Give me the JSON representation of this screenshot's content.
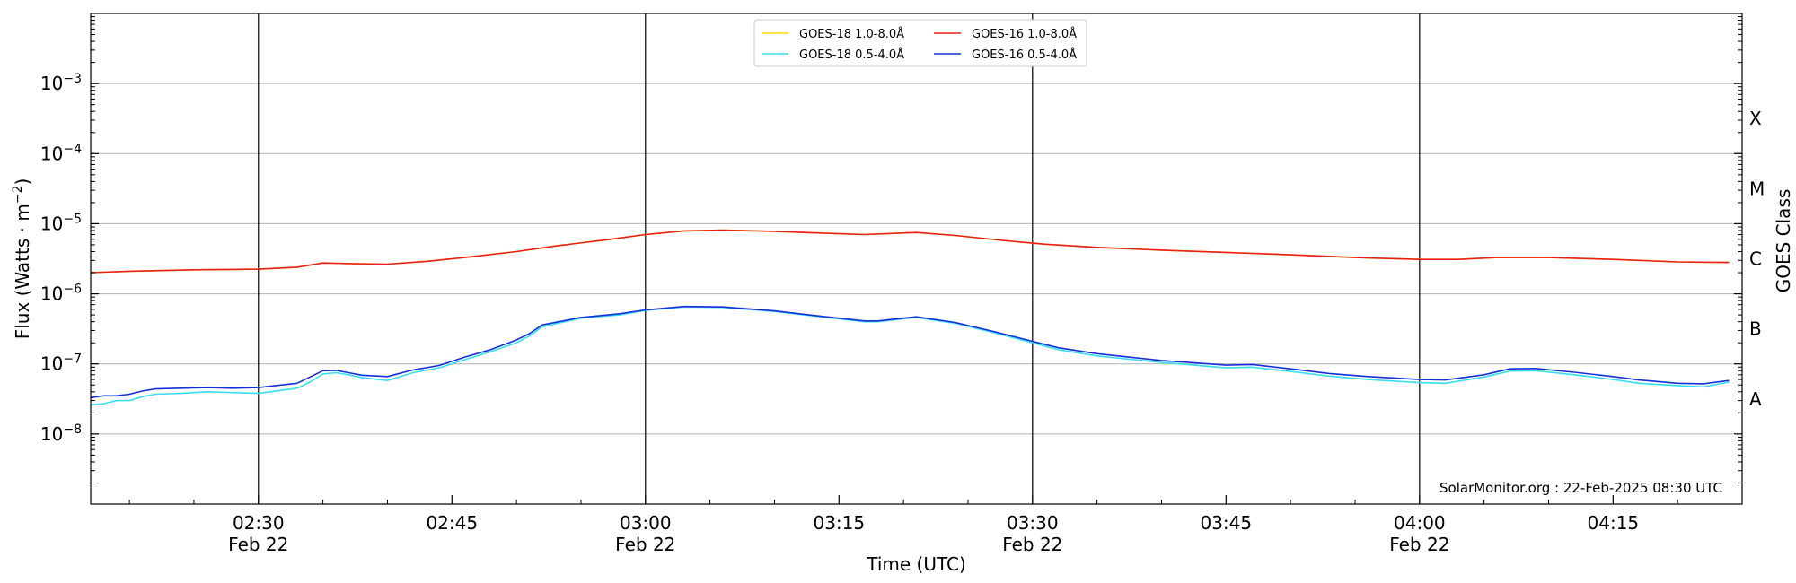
{
  "chart_data": {
    "type": "line",
    "xlabel": "Time (UTC)",
    "ylabel": "Flux (Watts · m",
    "ylabel_sup": "−2",
    "ylabel_close": ")",
    "right_label": "GOES Class",
    "y_scale": "log",
    "ylim": [
      1e-09,
      0.01
    ],
    "xlim": [
      "02:17",
      "04:25"
    ],
    "grid": "horizontal at each decade",
    "legend_position": "top-center",
    "watermark": "SolarMonitor.org : 22-Feb-2025 08:30 UTC",
    "x_ticks": [
      {
        "t": "02:30",
        "label": "02:30",
        "sub": "Feb 22",
        "vline": true
      },
      {
        "t": "02:45",
        "label": "02:45",
        "sub": "",
        "vline": false
      },
      {
        "t": "03:00",
        "label": "03:00",
        "sub": "Feb 22",
        "vline": true
      },
      {
        "t": "03:15",
        "label": "03:15",
        "sub": "",
        "vline": false
      },
      {
        "t": "03:30",
        "label": "03:30",
        "sub": "Feb 22",
        "vline": true
      },
      {
        "t": "03:45",
        "label": "03:45",
        "sub": "",
        "vline": false
      },
      {
        "t": "04:00",
        "label": "04:00",
        "sub": "Feb 22",
        "vline": true
      },
      {
        "t": "04:15",
        "label": "04:15",
        "sub": "",
        "vline": false
      }
    ],
    "y_ticks": [
      {
        "value": 1e-08,
        "base": "10",
        "exp": "−8"
      },
      {
        "value": 1e-07,
        "base": "10",
        "exp": "−7"
      },
      {
        "value": 1e-06,
        "base": "10",
        "exp": "−6"
      },
      {
        "value": 1e-05,
        "base": "10",
        "exp": "−5"
      },
      {
        "value": 0.0001,
        "base": "10",
        "exp": "−4"
      },
      {
        "value": 0.001,
        "base": "10",
        "exp": "−3"
      }
    ],
    "goes_classes": [
      {
        "label": "A",
        "value": 3.16e-08
      },
      {
        "label": "B",
        "value": 3.16e-07
      },
      {
        "label": "C",
        "value": 3.16e-06
      },
      {
        "label": "M",
        "value": 3.16e-05
      },
      {
        "label": "X",
        "value": 0.000316
      }
    ],
    "series": [
      {
        "name": "GOES-18 1.0-8.0Å",
        "color": "#FFD700",
        "x": [
          "02:17",
          "02:20",
          "02:25",
          "02:30",
          "02:33",
          "02:35",
          "02:37",
          "02:40",
          "02:43",
          "02:46",
          "02:50",
          "02:53",
          "02:57",
          "03:00",
          "03:03",
          "03:06",
          "03:10",
          "03:13",
          "03:17",
          "03:21",
          "03:24",
          "03:28",
          "03:31",
          "03:35",
          "03:40",
          "03:45",
          "03:50",
          "03:55",
          "04:00",
          "04:03",
          "04:06",
          "04:10",
          "04:15",
          "04:20",
          "04:24"
        ],
        "values": [
          2e-06,
          2.1e-06,
          2.2e-06,
          2.25e-06,
          2.4e-06,
          2.75e-06,
          2.7e-06,
          2.65e-06,
          2.9e-06,
          3.3e-06,
          4e-06,
          4.8e-06,
          5.9e-06,
          7e-06,
          7.9e-06,
          8.1e-06,
          7.8e-06,
          7.4e-06,
          7e-06,
          7.5e-06,
          6.8e-06,
          5.7e-06,
          5.1e-06,
          4.6e-06,
          4.2e-06,
          3.9e-06,
          3.6e-06,
          3.3e-06,
          3.1e-06,
          3.1e-06,
          3.3e-06,
          3.3e-06,
          3.1e-06,
          2.85e-06,
          2.8e-06
        ]
      },
      {
        "name": "GOES-16 1.0-8.0Å",
        "color": "#E8201A",
        "x": [
          "02:17",
          "02:20",
          "02:25",
          "02:30",
          "02:33",
          "02:35",
          "02:37",
          "02:40",
          "02:43",
          "02:46",
          "02:50",
          "02:53",
          "02:57",
          "03:00",
          "03:03",
          "03:06",
          "03:10",
          "03:13",
          "03:17",
          "03:21",
          "03:24",
          "03:28",
          "03:31",
          "03:35",
          "03:40",
          "03:45",
          "03:50",
          "03:55",
          "04:00",
          "04:03",
          "04:06",
          "04:10",
          "04:15",
          "04:20",
          "04:24"
        ],
        "values": [
          2e-06,
          2.1e-06,
          2.2e-06,
          2.25e-06,
          2.4e-06,
          2.75e-06,
          2.7e-06,
          2.65e-06,
          2.9e-06,
          3.3e-06,
          4e-06,
          4.8e-06,
          5.9e-06,
          7e-06,
          7.9e-06,
          8.1e-06,
          7.8e-06,
          7.4e-06,
          7e-06,
          7.5e-06,
          6.8e-06,
          5.7e-06,
          5.1e-06,
          4.6e-06,
          4.2e-06,
          3.9e-06,
          3.6e-06,
          3.3e-06,
          3.1e-06,
          3.1e-06,
          3.3e-06,
          3.3e-06,
          3.1e-06,
          2.85e-06,
          2.8e-06
        ]
      },
      {
        "name": "GOES-18 0.5-4.0Å",
        "color": "#3ADDEF",
        "x": [
          "02:17",
          "02:18",
          "02:19",
          "02:20",
          "02:21",
          "02:22",
          "02:24",
          "02:26",
          "02:28",
          "02:30",
          "02:33",
          "02:34",
          "02:35",
          "02:36",
          "02:37",
          "02:38",
          "02:40",
          "02:42",
          "02:44",
          "02:46",
          "02:48",
          "02:50",
          "02:51",
          "02:52",
          "02:55",
          "02:58",
          "03:00",
          "03:03",
          "03:06",
          "03:10",
          "03:14",
          "03:17",
          "03:18",
          "03:20",
          "03:21",
          "03:24",
          "03:27",
          "03:30",
          "03:32",
          "03:35",
          "03:40",
          "03:45",
          "03:47",
          "03:50",
          "03:53",
          "03:56",
          "04:00",
          "04:02",
          "04:05",
          "04:07",
          "04:09",
          "04:12",
          "04:15",
          "04:17",
          "04:20",
          "04:22",
          "04:24"
        ],
        "values": [
          2.6e-08,
          2.7e-08,
          3e-08,
          3e-08,
          3.4e-08,
          3.7e-08,
          3.8e-08,
          4e-08,
          3.9e-08,
          3.8e-08,
          4.5e-08,
          5.5e-08,
          7.2e-08,
          7.5e-08,
          7e-08,
          6.4e-08,
          5.8e-08,
          7.5e-08,
          8.8e-08,
          1.15e-07,
          1.5e-07,
          2e-07,
          2.5e-07,
          3.4e-07,
          4.5e-07,
          5e-07,
          5.8e-07,
          6.5e-07,
          6.4e-07,
          5.6e-07,
          4.6e-07,
          4e-07,
          4e-07,
          4.4e-07,
          4.6e-07,
          3.8e-07,
          2.8e-07,
          2e-07,
          1.6e-07,
          1.3e-07,
          1.05e-07,
          8.8e-08,
          9e-08,
          7.8e-08,
          6.7e-08,
          6e-08,
          5.4e-08,
          5.3e-08,
          6.5e-08,
          7.9e-08,
          8e-08,
          7e-08,
          6e-08,
          5.3e-08,
          4.9e-08,
          4.7e-08,
          5.5e-08
        ]
      },
      {
        "name": "GOES-16 0.5-4.0Å",
        "color": "#1530D8",
        "x": [
          "02:17",
          "02:18",
          "02:19",
          "02:20",
          "02:21",
          "02:22",
          "02:24",
          "02:26",
          "02:28",
          "02:30",
          "02:33",
          "02:34",
          "02:35",
          "02:36",
          "02:37",
          "02:38",
          "02:40",
          "02:42",
          "02:44",
          "02:46",
          "02:48",
          "02:50",
          "02:51",
          "02:52",
          "02:55",
          "02:58",
          "03:00",
          "03:03",
          "03:06",
          "03:10",
          "03:14",
          "03:17",
          "03:18",
          "03:20",
          "03:21",
          "03:24",
          "03:27",
          "03:30",
          "03:32",
          "03:35",
          "03:40",
          "03:45",
          "03:47",
          "03:50",
          "03:53",
          "03:56",
          "04:00",
          "04:02",
          "04:05",
          "04:07",
          "04:09",
          "04:12",
          "04:15",
          "04:17",
          "04:20",
          "04:22",
          "04:24"
        ],
        "values": [
          3.3e-08,
          3.5e-08,
          3.5e-08,
          3.7e-08,
          4.1e-08,
          4.4e-08,
          4.5e-08,
          4.6e-08,
          4.5e-08,
          4.6e-08,
          5.3e-08,
          6.5e-08,
          8e-08,
          8.1e-08,
          7.5e-08,
          6.9e-08,
          6.6e-08,
          8.2e-08,
          9.5e-08,
          1.25e-07,
          1.6e-07,
          2.2e-07,
          2.7e-07,
          3.6e-07,
          4.6e-07,
          5.2e-07,
          5.9e-07,
          6.6e-07,
          6.5e-07,
          5.7e-07,
          4.7e-07,
          4.1e-07,
          4.1e-07,
          4.5e-07,
          4.7e-07,
          3.9e-07,
          2.9e-07,
          2.1e-07,
          1.7e-07,
          1.4e-07,
          1.12e-07,
          9.6e-08,
          9.8e-08,
          8.5e-08,
          7.3e-08,
          6.6e-08,
          6e-08,
          5.9e-08,
          7e-08,
          8.5e-08,
          8.6e-08,
          7.6e-08,
          6.6e-08,
          5.9e-08,
          5.3e-08,
          5.2e-08,
          5.8e-08
        ]
      }
    ],
    "legend_order": [
      0,
      2,
      1,
      3
    ]
  }
}
